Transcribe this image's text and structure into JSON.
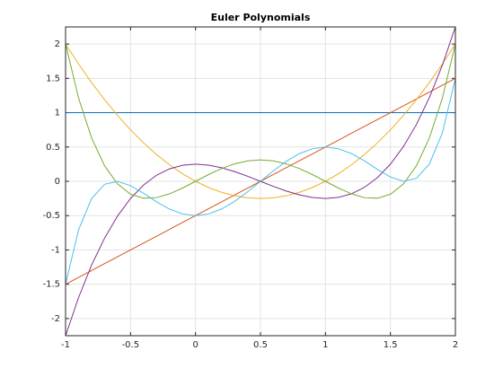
{
  "chart_data": {
    "type": "line",
    "title": "Euler Polynomials",
    "x": [
      -1,
      -0.9,
      -0.8,
      -0.7,
      -0.6,
      -0.5,
      -0.4,
      -0.3,
      -0.2,
      -0.1,
      0,
      0.1,
      0.2,
      0.3,
      0.4,
      0.5,
      0.6,
      0.7,
      0.8,
      0.9,
      1,
      1.1,
      1.2,
      1.3,
      1.4,
      1.5,
      1.6,
      1.7,
      1.8,
      1.9,
      2
    ],
    "series": [
      {
        "color": "#0072bd",
        "values": [
          1,
          1,
          1,
          1,
          1,
          1,
          1,
          1,
          1,
          1,
          1,
          1,
          1,
          1,
          1,
          1,
          1,
          1,
          1,
          1,
          1,
          1,
          1,
          1,
          1,
          1,
          1,
          1,
          1,
          1,
          1
        ]
      },
      {
        "color": "#d95319",
        "values": [
          -1.5,
          -1.4,
          -1.3,
          -1.2,
          -1.1,
          -1,
          -0.9,
          -0.8,
          -0.7,
          -0.6,
          -0.5,
          -0.4,
          -0.3,
          -0.2,
          -0.1,
          0,
          0.1,
          0.2,
          0.3,
          0.4,
          0.5,
          0.6,
          0.7,
          0.8,
          0.9,
          1,
          1.1,
          1.2,
          1.3,
          1.4,
          1.5
        ]
      },
      {
        "color": "#edb120",
        "values": [
          2,
          1.71,
          1.44,
          1.19,
          0.96,
          0.75,
          0.56,
          0.39,
          0.24,
          0.11,
          0,
          -0.09,
          -0.16,
          -0.21,
          -0.24,
          -0.25,
          -0.24,
          -0.21,
          -0.16,
          -0.09,
          0,
          0.11,
          0.24,
          0.39,
          0.56,
          0.75,
          0.96,
          1.19,
          1.44,
          1.71,
          2
        ]
      },
      {
        "color": "#7e2f8e",
        "values": [
          -2.25,
          -1.694,
          -1.222,
          -0.828,
          -0.506,
          -0.25,
          -0.054,
          0.088,
          0.182,
          0.234,
          0.25,
          0.236,
          0.198,
          0.142,
          0.074,
          0,
          -0.074,
          -0.142,
          -0.198,
          -0.236,
          -0.25,
          -0.234,
          -0.182,
          -0.088,
          0.054,
          0.25,
          0.506,
          0.828,
          1.222,
          1.694,
          2.25
        ]
      },
      {
        "color": "#77ac30",
        "values": [
          2,
          1.214,
          0.634,
          0.226,
          -0.038,
          -0.188,
          -0.246,
          -0.238,
          -0.182,
          -0.098,
          0,
          0.098,
          0.186,
          0.254,
          0.298,
          0.313,
          0.298,
          0.254,
          0.186,
          0.098,
          0,
          -0.098,
          -0.182,
          -0.238,
          -0.246,
          -0.188,
          -0.038,
          0.226,
          0.634,
          1.214,
          2
        ]
      },
      {
        "color": "#4dbeee",
        "values": [
          -1.5,
          -0.706,
          -0.252,
          -0.043,
          -0.002,
          -0.063,
          -0.174,
          -0.298,
          -0.404,
          -0.475,
          -0.5,
          -0.475,
          -0.404,
          -0.293,
          -0.154,
          0,
          0.154,
          0.293,
          0.404,
          0.475,
          0.5,
          0.475,
          0.404,
          0.298,
          0.174,
          0.063,
          0.002,
          0.043,
          0.252,
          0.706,
          1.5
        ]
      }
    ],
    "xlim": [
      -1,
      2
    ],
    "xticks": [
      -1,
      -0.5,
      0,
      0.5,
      1,
      1.5,
      2
    ],
    "ylim": [
      -2.25,
      2.25
    ],
    "yticks": [
      -2,
      -1.5,
      -1,
      -0.5,
      0,
      0.5,
      1,
      1.5,
      2
    ],
    "grid": true
  }
}
